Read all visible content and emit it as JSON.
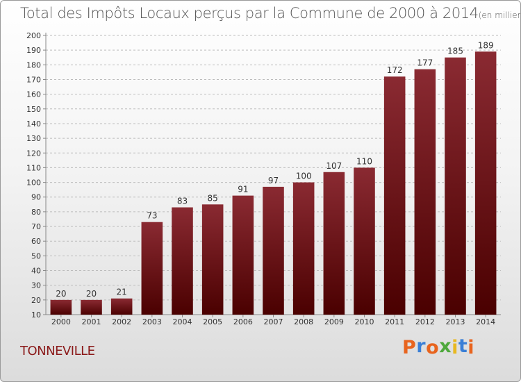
{
  "title": "Total des Impôts Locaux perçus par la Commune de 2000 à 2014",
  "unit_label": "(en milliers d'€)",
  "commune": "TONNEVILLE",
  "logo": {
    "letters": [
      "P",
      "r",
      "o",
      "x",
      "i",
      "t",
      "i"
    ],
    "colors": [
      "#e8641e",
      "#3a7fd6",
      "#e8641e",
      "#4ea83c",
      "#e8b820",
      "#3a7fd6",
      "#e8641e"
    ]
  },
  "colors": {
    "bar_top": "#8a2a32",
    "bar_bottom": "#4a0000",
    "commune": "#8b1a1a",
    "grid": "#bcbcbc"
  },
  "chart_data": {
    "type": "bar",
    "title": "Total des Impôts Locaux perçus par la Commune de 2000 à 2014",
    "xlabel": "",
    "ylabel": "",
    "categories": [
      "2000",
      "2001",
      "2002",
      "2003",
      "2004",
      "2005",
      "2006",
      "2007",
      "2008",
      "2009",
      "2010",
      "2011",
      "2012",
      "2013",
      "2014"
    ],
    "values": [
      20,
      20,
      21,
      73,
      83,
      85,
      91,
      97,
      100,
      107,
      110,
      172,
      177,
      185,
      189
    ],
    "ylim": [
      10,
      200
    ],
    "yticks": [
      10,
      20,
      30,
      40,
      50,
      60,
      70,
      80,
      90,
      100,
      110,
      120,
      130,
      140,
      150,
      160,
      170,
      180,
      190,
      200
    ],
    "grid": true,
    "data_labels": true
  }
}
